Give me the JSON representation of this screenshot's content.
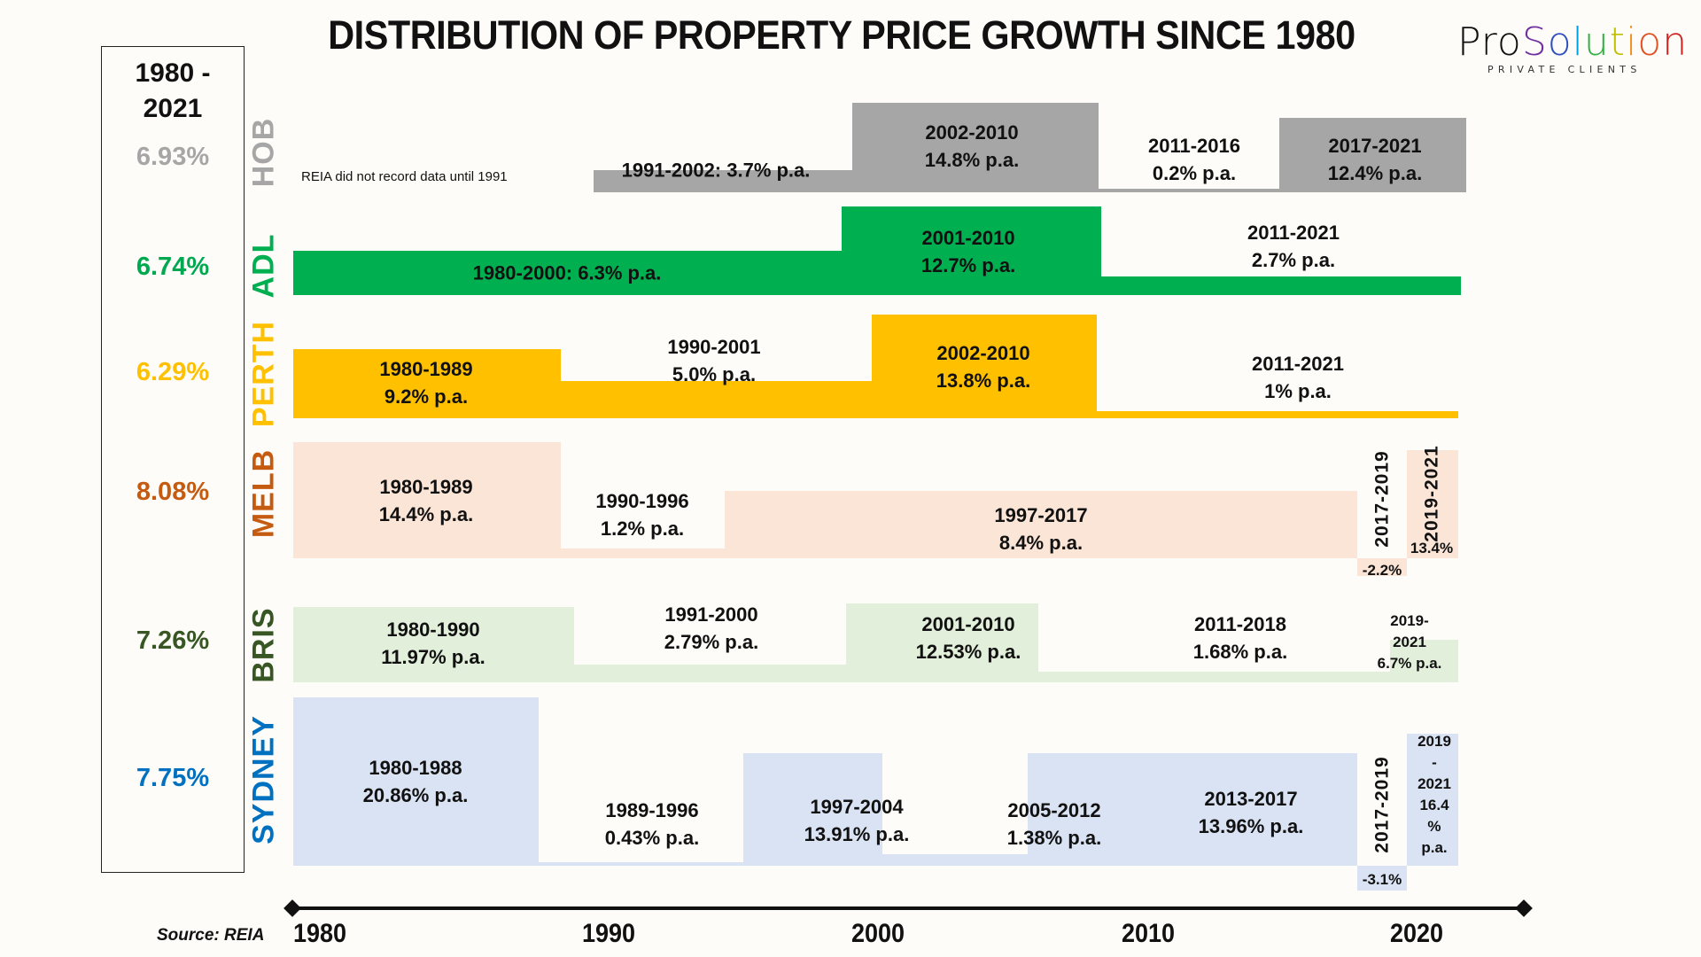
{
  "title": "DISTRIBUTION OF PROPERTY PRICE GROWTH SINCE 1980",
  "logo": {
    "word_parts": [
      "Pro",
      "S",
      "o",
      "l",
      "u",
      "t",
      "i",
      "o",
      "n"
    ],
    "subtitle": "PRIVATE CLIENTS"
  },
  "summary": {
    "heading_line1": "1980 -",
    "heading_line2": "2021",
    "values": [
      {
        "city": "HOB",
        "value": "6.93%",
        "color": "#a6a6a6"
      },
      {
        "city": "ADL",
        "value": "6.74%",
        "color": "#00a84f"
      },
      {
        "city": "PERTH",
        "value": "6.29%",
        "color": "#ffc000"
      },
      {
        "city": "MELB",
        "value": "8.08%",
        "color": "#c55a11"
      },
      {
        "city": "BRIS",
        "value": "7.26%",
        "color": "#375623"
      },
      {
        "city": "SYDNEY",
        "value": "7.75%",
        "color": "#0070c0"
      }
    ]
  },
  "note": "REIA did not record data until 1991",
  "source": "Source: REIA",
  "chart_data": {
    "type": "bar",
    "title": "DISTRIBUTION OF PROPERTY PRICE GROWTH SINCE 1980",
    "xlabel": "",
    "ylabel": "",
    "x_ticks": [
      "1980",
      "1990",
      "2000",
      "2010",
      "2020"
    ],
    "xlim": [
      1980,
      2022
    ],
    "series": [
      {
        "name": "HOB",
        "color": "#a6a6a6",
        "overall": "6.93%",
        "periods": [
          {
            "start": 1991,
            "end": 2002,
            "growth_pa": 3.7,
            "label1": "1991-2002: 3.7% p.a.",
            "label2": ""
          },
          {
            "start": 2002,
            "end": 2010,
            "growth_pa": 14.8,
            "label1": "2002-2010",
            "label2": "14.8% p.a."
          },
          {
            "start": 2011,
            "end": 2016,
            "growth_pa": 0.2,
            "label1": "2011-2016",
            "label2": "0.2% p.a."
          },
          {
            "start": 2017,
            "end": 2021,
            "growth_pa": 12.4,
            "label1": "2017-2021",
            "label2": "12.4% p.a."
          }
        ]
      },
      {
        "name": "ADL",
        "color": "#00b050",
        "overall": "6.74%",
        "periods": [
          {
            "start": 1980,
            "end": 2000,
            "growth_pa": 6.3,
            "label1": "1980-2000: 6.3% p.a.",
            "label2": ""
          },
          {
            "start": 2001,
            "end": 2010,
            "growth_pa": 12.7,
            "label1": "2001-2010",
            "label2": "12.7% p.a."
          },
          {
            "start": 2011,
            "end": 2021,
            "growth_pa": 2.7,
            "label1": "2011-2021",
            "label2": "2.7% p.a."
          }
        ]
      },
      {
        "name": "PERTH",
        "color": "#ffc000",
        "overall": "6.29%",
        "periods": [
          {
            "start": 1980,
            "end": 1989,
            "growth_pa": 9.2,
            "label1": "1980-1989",
            "label2": "9.2% p.a."
          },
          {
            "start": 1990,
            "end": 2001,
            "growth_pa": 5.0,
            "label1": "1990-2001",
            "label2": "5.0% p.a."
          },
          {
            "start": 2002,
            "end": 2010,
            "growth_pa": 13.8,
            "label1": "2002-2010",
            "label2": "13.8% p.a."
          },
          {
            "start": 2011,
            "end": 2021,
            "growth_pa": 1.0,
            "label1": "2011-2021",
            "label2": "1% p.a."
          }
        ]
      },
      {
        "name": "MELB",
        "color": "#fbe5d6",
        "overall": "8.08%",
        "periods": [
          {
            "start": 1980,
            "end": 1989,
            "growth_pa": 14.4,
            "label1": "1980-1989",
            "label2": "14.4% p.a."
          },
          {
            "start": 1990,
            "end": 1996,
            "growth_pa": 1.2,
            "label1": "1990-1996",
            "label2": "1.2% p.a."
          },
          {
            "start": 1997,
            "end": 2017,
            "growth_pa": 8.4,
            "label1": "1997-2017",
            "label2": "8.4% p.a."
          },
          {
            "start": 2017,
            "end": 2019,
            "growth_pa": -2.2,
            "label1": "2017-2019",
            "label2": "-2.2%"
          },
          {
            "start": 2019,
            "end": 2021,
            "growth_pa": 13.4,
            "label1": "2019-2021",
            "label2": "13.4%"
          }
        ]
      },
      {
        "name": "BRIS",
        "color": "#e2efda",
        "overall": "7.26%",
        "periods": [
          {
            "start": 1980,
            "end": 1990,
            "growth_pa": 11.97,
            "label1": "1980-1990",
            "label2": "11.97% p.a."
          },
          {
            "start": 1991,
            "end": 2000,
            "growth_pa": 2.79,
            "label1": "1991-2000",
            "label2": "2.79% p.a."
          },
          {
            "start": 2001,
            "end": 2010,
            "growth_pa": 12.53,
            "label1": "2001-2010",
            "label2": "12.53% p.a."
          },
          {
            "start": 2011,
            "end": 2018,
            "growth_pa": 1.68,
            "label1": "2011-2018",
            "label2": "1.68% p.a."
          },
          {
            "start": 2019,
            "end": 2021,
            "growth_pa": 6.7,
            "label1": "2019-2021",
            "label2": "6.7% p.a."
          }
        ]
      },
      {
        "name": "SYDNEY",
        "color": "#dae3f3",
        "overall": "7.75%",
        "periods": [
          {
            "start": 1980,
            "end": 1988,
            "growth_pa": 20.86,
            "label1": "1980-1988",
            "label2": "20.86% p.a."
          },
          {
            "start": 1989,
            "end": 1996,
            "growth_pa": 0.43,
            "label1": "1989-1996",
            "label2": "0.43% p.a."
          },
          {
            "start": 1997,
            "end": 2004,
            "growth_pa": 13.91,
            "label1": "1997-2004",
            "label2": "13.91% p.a."
          },
          {
            "start": 2005,
            "end": 2012,
            "growth_pa": 1.38,
            "label1": "2005-2012",
            "label2": "1.38% p.a."
          },
          {
            "start": 2013,
            "end": 2017,
            "growth_pa": 13.96,
            "label1": "2013-2017",
            "label2": "13.96% p.a."
          },
          {
            "start": 2017,
            "end": 2019,
            "growth_pa": -3.1,
            "label1": "2017-2019",
            "label2": "-3.1%"
          },
          {
            "start": 2019,
            "end": 2021,
            "growth_pa": 16.4,
            "label1": "2019-2021",
            "label2": "16.4% p.a."
          }
        ]
      }
    ]
  },
  "display_labels": {
    "bris_2019": [
      "2019-",
      "2021",
      "6.7% p.a."
    ],
    "syd_2019": [
      "2019",
      "-",
      "2021",
      "16.4",
      "%",
      "p.a."
    ]
  }
}
